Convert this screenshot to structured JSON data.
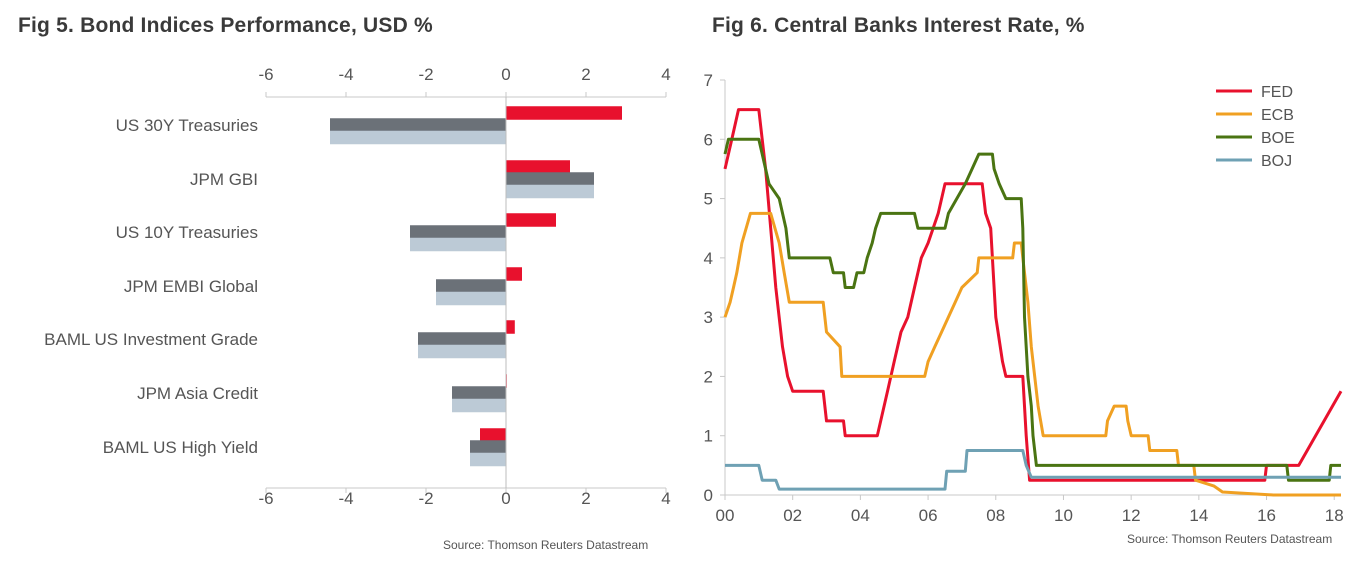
{
  "left": {
    "title": "Fig 5. Bond Indices Performance, USD %",
    "source": "Source: Thomson Reuters Datastream",
    "chart_data": {
      "type": "bar",
      "orientation": "horizontal",
      "categories": [
        "US 30Y Treasuries",
        "JPM GBI",
        "US 10Y Treasuries",
        "JPM EMBI Global",
        "BAML US Investment Grade",
        "JPM Asia Credit",
        "BAML US High Yield"
      ],
      "series": [
        {
          "color": "#e8112d",
          "values": [
            2.9,
            1.6,
            1.25,
            0.4,
            0.22,
            0.02,
            -0.65
          ]
        },
        {
          "color": "#6b7178",
          "values": [
            -4.4,
            2.2,
            -2.4,
            -1.75,
            -2.2,
            -1.35,
            -0.9
          ]
        },
        {
          "color": "#bccad6",
          "values": [
            -4.4,
            2.2,
            -2.4,
            -1.75,
            -2.2,
            -1.35,
            -0.9
          ]
        }
      ],
      "xlim": [
        -6,
        4
      ],
      "xticks": [
        "-6",
        "-4",
        "-2",
        "0",
        "2",
        "4"
      ],
      "grid": false
    }
  },
  "right": {
    "title": "Fig 6. Central Banks Interest Rate, %",
    "source": "Source: Thomson Reuters Datastream",
    "chart_data": {
      "type": "line",
      "xlim": [
        2000,
        2018.2
      ],
      "ylim": [
        0,
        7
      ],
      "xticks": [
        "00",
        "02",
        "04",
        "06",
        "08",
        "10",
        "12",
        "14",
        "16",
        "18"
      ],
      "yticks": [
        "0",
        "1",
        "2",
        "3",
        "4",
        "5",
        "6",
        "7"
      ],
      "legend": "top-right",
      "grid": false,
      "series": [
        {
          "name": "FED",
          "color": "#e8112d",
          "points": [
            [
              2000,
              5.5
            ],
            [
              2000.2,
              6
            ],
            [
              2000.4,
              6.5
            ],
            [
              2001,
              6.5
            ],
            [
              2001.1,
              6
            ],
            [
              2001.2,
              5.5
            ],
            [
              2001.35,
              4.5
            ],
            [
              2001.5,
              3.5
            ],
            [
              2001.7,
              2.5
            ],
            [
              2001.85,
              2
            ],
            [
              2002,
              1.75
            ],
            [
              2002.9,
              1.75
            ],
            [
              2003,
              1.25
            ],
            [
              2003.5,
              1.25
            ],
            [
              2003.55,
              1
            ],
            [
              2004.5,
              1
            ],
            [
              2004.6,
              1.25
            ],
            [
              2004.8,
              1.75
            ],
            [
              2005,
              2.25
            ],
            [
              2005.2,
              2.75
            ],
            [
              2005.4,
              3
            ],
            [
              2005.6,
              3.5
            ],
            [
              2005.8,
              4
            ],
            [
              2006.0,
              4.25
            ],
            [
              2006.3,
              4.75
            ],
            [
              2006.5,
              5.25
            ],
            [
              2007.6,
              5.25
            ],
            [
              2007.7,
              4.75
            ],
            [
              2007.85,
              4.5
            ],
            [
              2008,
              3
            ],
            [
              2008.2,
              2.25
            ],
            [
              2008.3,
              2
            ],
            [
              2008.8,
              2
            ],
            [
              2008.85,
              1.5
            ],
            [
              2008.9,
              1
            ],
            [
              2009,
              0.25
            ],
            [
              2015.95,
              0.25
            ],
            [
              2016,
              0.5
            ],
            [
              2016.95,
              0.5
            ],
            [
              2017.2,
              0.75
            ],
            [
              2017.45,
              1
            ],
            [
              2017.7,
              1.25
            ],
            [
              2017.95,
              1.5
            ],
            [
              2018.2,
              1.75
            ]
          ]
        },
        {
          "name": "ECB",
          "color": "#f0a022",
          "points": [
            [
              2000,
              3
            ],
            [
              2000.15,
              3.25
            ],
            [
              2000.25,
              3.5
            ],
            [
              2000.35,
              3.75
            ],
            [
              2000.5,
              4.25
            ],
            [
              2000.75,
              4.75
            ],
            [
              2001.35,
              4.75
            ],
            [
              2001.6,
              4.25
            ],
            [
              2001.75,
              3.75
            ],
            [
              2001.9,
              3.25
            ],
            [
              2002.9,
              3.25
            ],
            [
              2003.0,
              2.75
            ],
            [
              2003.4,
              2.5
            ],
            [
              2003.45,
              2
            ],
            [
              2005.9,
              2
            ],
            [
              2006.0,
              2.25
            ],
            [
              2006.2,
              2.5
            ],
            [
              2006.4,
              2.75
            ],
            [
              2006.6,
              3
            ],
            [
              2006.8,
              3.25
            ],
            [
              2007.0,
              3.5
            ],
            [
              2007.45,
              3.75
            ],
            [
              2007.5,
              4
            ],
            [
              2008.5,
              4
            ],
            [
              2008.55,
              4.25
            ],
            [
              2008.75,
              4.25
            ],
            [
              2008.85,
              3.75
            ],
            [
              2008.95,
              3.25
            ],
            [
              2009.05,
              2.5
            ],
            [
              2009.15,
              2
            ],
            [
              2009.25,
              1.5
            ],
            [
              2009.4,
              1
            ],
            [
              2011.25,
              1
            ],
            [
              2011.3,
              1.25
            ],
            [
              2011.5,
              1.5
            ],
            [
              2011.85,
              1.5
            ],
            [
              2011.9,
              1.25
            ],
            [
              2012.0,
              1
            ],
            [
              2012.5,
              1
            ],
            [
              2012.55,
              0.75
            ],
            [
              2013.35,
              0.75
            ],
            [
              2013.4,
              0.5
            ],
            [
              2013.85,
              0.5
            ],
            [
              2013.9,
              0.25
            ],
            [
              2014.45,
              0.15
            ],
            [
              2014.7,
              0.05
            ],
            [
              2016.2,
              0
            ],
            [
              2018.2,
              0
            ]
          ]
        },
        {
          "name": "BOE",
          "color": "#4a7412",
          "points": [
            [
              2000,
              5.75
            ],
            [
              2000.1,
              6
            ],
            [
              2001.0,
              6
            ],
            [
              2001.1,
              5.75
            ],
            [
              2001.3,
              5.25
            ],
            [
              2001.6,
              5
            ],
            [
              2001.8,
              4.5
            ],
            [
              2001.9,
              4
            ],
            [
              2003.1,
              4
            ],
            [
              2003.2,
              3.75
            ],
            [
              2003.5,
              3.75
            ],
            [
              2003.55,
              3.5
            ],
            [
              2003.8,
              3.5
            ],
            [
              2003.9,
              3.75
            ],
            [
              2004.1,
              3.75
            ],
            [
              2004.2,
              4
            ],
            [
              2004.35,
              4.25
            ],
            [
              2004.45,
              4.5
            ],
            [
              2004.6,
              4.75
            ],
            [
              2005.6,
              4.75
            ],
            [
              2005.7,
              4.5
            ],
            [
              2006.5,
              4.5
            ],
            [
              2006.6,
              4.75
            ],
            [
              2006.85,
              5
            ],
            [
              2007.1,
              5.25
            ],
            [
              2007.3,
              5.5
            ],
            [
              2007.5,
              5.75
            ],
            [
              2007.9,
              5.75
            ],
            [
              2007.95,
              5.5
            ],
            [
              2008.1,
              5.25
            ],
            [
              2008.3,
              5
            ],
            [
              2008.75,
              5
            ],
            [
              2008.8,
              4.5
            ],
            [
              2008.85,
              3
            ],
            [
              2008.95,
              2
            ],
            [
              2009.05,
              1.5
            ],
            [
              2009.1,
              1
            ],
            [
              2009.2,
              0.5
            ],
            [
              2016.6,
              0.5
            ],
            [
              2016.65,
              0.25
            ],
            [
              2017.85,
              0.25
            ],
            [
              2017.9,
              0.5
            ],
            [
              2018.2,
              0.5
            ]
          ]
        },
        {
          "name": "BOJ",
          "color": "#6fa1b4",
          "points": [
            [
              2000,
              0.5
            ],
            [
              2000.6,
              0.5
            ],
            [
              2001.0,
              0.5
            ],
            [
              2001.1,
              0.25
            ],
            [
              2001.5,
              0.25
            ],
            [
              2001.6,
              0.1
            ],
            [
              2006.5,
              0.1
            ],
            [
              2006.55,
              0.4
            ],
            [
              2007.1,
              0.4
            ],
            [
              2007.15,
              0.75
            ],
            [
              2008.8,
              0.75
            ],
            [
              2008.9,
              0.5
            ],
            [
              2009.05,
              0.3
            ],
            [
              2018.2,
              0.3
            ]
          ]
        }
      ]
    }
  }
}
